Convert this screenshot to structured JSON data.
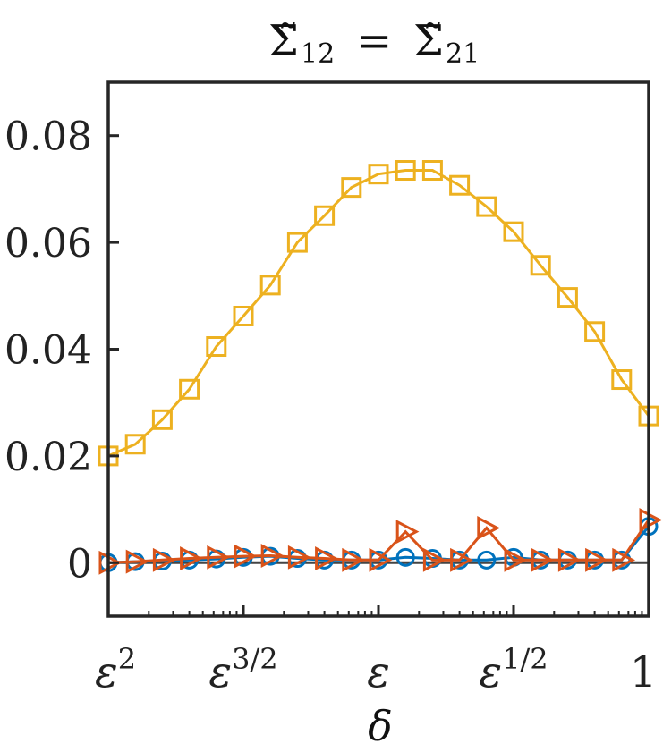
{
  "chart_data": {
    "type": "line",
    "title": "Σ̃₁₂ = Σ̃₂₁",
    "title_parts": {
      "lhs": "Σ̃",
      "lhs_sub": "12",
      "eq": "=",
      "rhs": "Σ̃",
      "rhs_sub": "21"
    },
    "xlabel": "δ",
    "ylabel": "",
    "x_scale": "log",
    "x_ticks": [
      {
        "label": "ε",
        "sup": "2",
        "pos": 0
      },
      {
        "label": "ε",
        "sup": "3/2",
        "pos": 0.25
      },
      {
        "label": "ε",
        "sup": "",
        "pos": 0.5
      },
      {
        "label": "ε",
        "sup": "1/2",
        "pos": 0.75
      },
      {
        "label": "1",
        "sup": "",
        "pos": 1
      }
    ],
    "y_ticks": [
      {
        "label": "0",
        "value": 0
      },
      {
        "label": "0.02",
        "value": 0.02
      },
      {
        "label": "0.04",
        "value": 0.04
      },
      {
        "label": "0.06",
        "value": 0.06
      },
      {
        "label": "0.08",
        "value": 0.08
      }
    ],
    "ylim": [
      -0.01,
      0.09
    ],
    "grid": false,
    "reference_line": {
      "y": 0,
      "color": "#444444"
    },
    "series": [
      {
        "marker": "square",
        "color": "#EDB120",
        "x": [
          0.0,
          0.05,
          0.1,
          0.15,
          0.2,
          0.25,
          0.3,
          0.35,
          0.4,
          0.45,
          0.5,
          0.55,
          0.6,
          0.65,
          0.7,
          0.75,
          0.8,
          0.85,
          0.9,
          0.95,
          1.0
        ],
        "values": [
          0.02,
          0.0222,
          0.0268,
          0.0325,
          0.0405,
          0.0462,
          0.052,
          0.06,
          0.065,
          0.0703,
          0.0728,
          0.0735,
          0.0735,
          0.0707,
          0.0667,
          0.062,
          0.0557,
          0.0497,
          0.0433,
          0.0343,
          0.0275
        ]
      },
      {
        "marker": "circle",
        "color": "#0072BD",
        "x": [
          0.0,
          0.05,
          0.1,
          0.15,
          0.2,
          0.25,
          0.3,
          0.35,
          0.4,
          0.45,
          0.5,
          0.55,
          0.6,
          0.65,
          0.7,
          0.75,
          0.8,
          0.85,
          0.9,
          0.95,
          1.0
        ],
        "values": [
          0.0,
          0.0002,
          0.0003,
          0.0005,
          0.0007,
          0.001,
          0.0012,
          0.0008,
          0.0005,
          0.0005,
          0.0005,
          0.001,
          0.0008,
          0.0005,
          0.0005,
          0.001,
          0.0005,
          0.0005,
          0.0005,
          0.0005,
          0.0068
        ]
      },
      {
        "marker": "triangle-right",
        "color": "#D95319",
        "x": [
          0.0,
          0.05,
          0.1,
          0.15,
          0.2,
          0.25,
          0.3,
          0.35,
          0.4,
          0.45,
          0.5,
          0.55,
          0.6,
          0.65,
          0.7,
          0.75,
          0.8,
          0.85,
          0.9,
          0.95,
          1.0
        ],
        "values": [
          0.0,
          0.0002,
          0.0005,
          0.0008,
          0.001,
          0.0012,
          0.0013,
          0.001,
          0.0008,
          0.0005,
          0.0005,
          0.0058,
          0.0005,
          0.0005,
          0.0065,
          0.0005,
          0.0005,
          0.0005,
          0.0005,
          0.0005,
          0.008
        ]
      }
    ]
  }
}
